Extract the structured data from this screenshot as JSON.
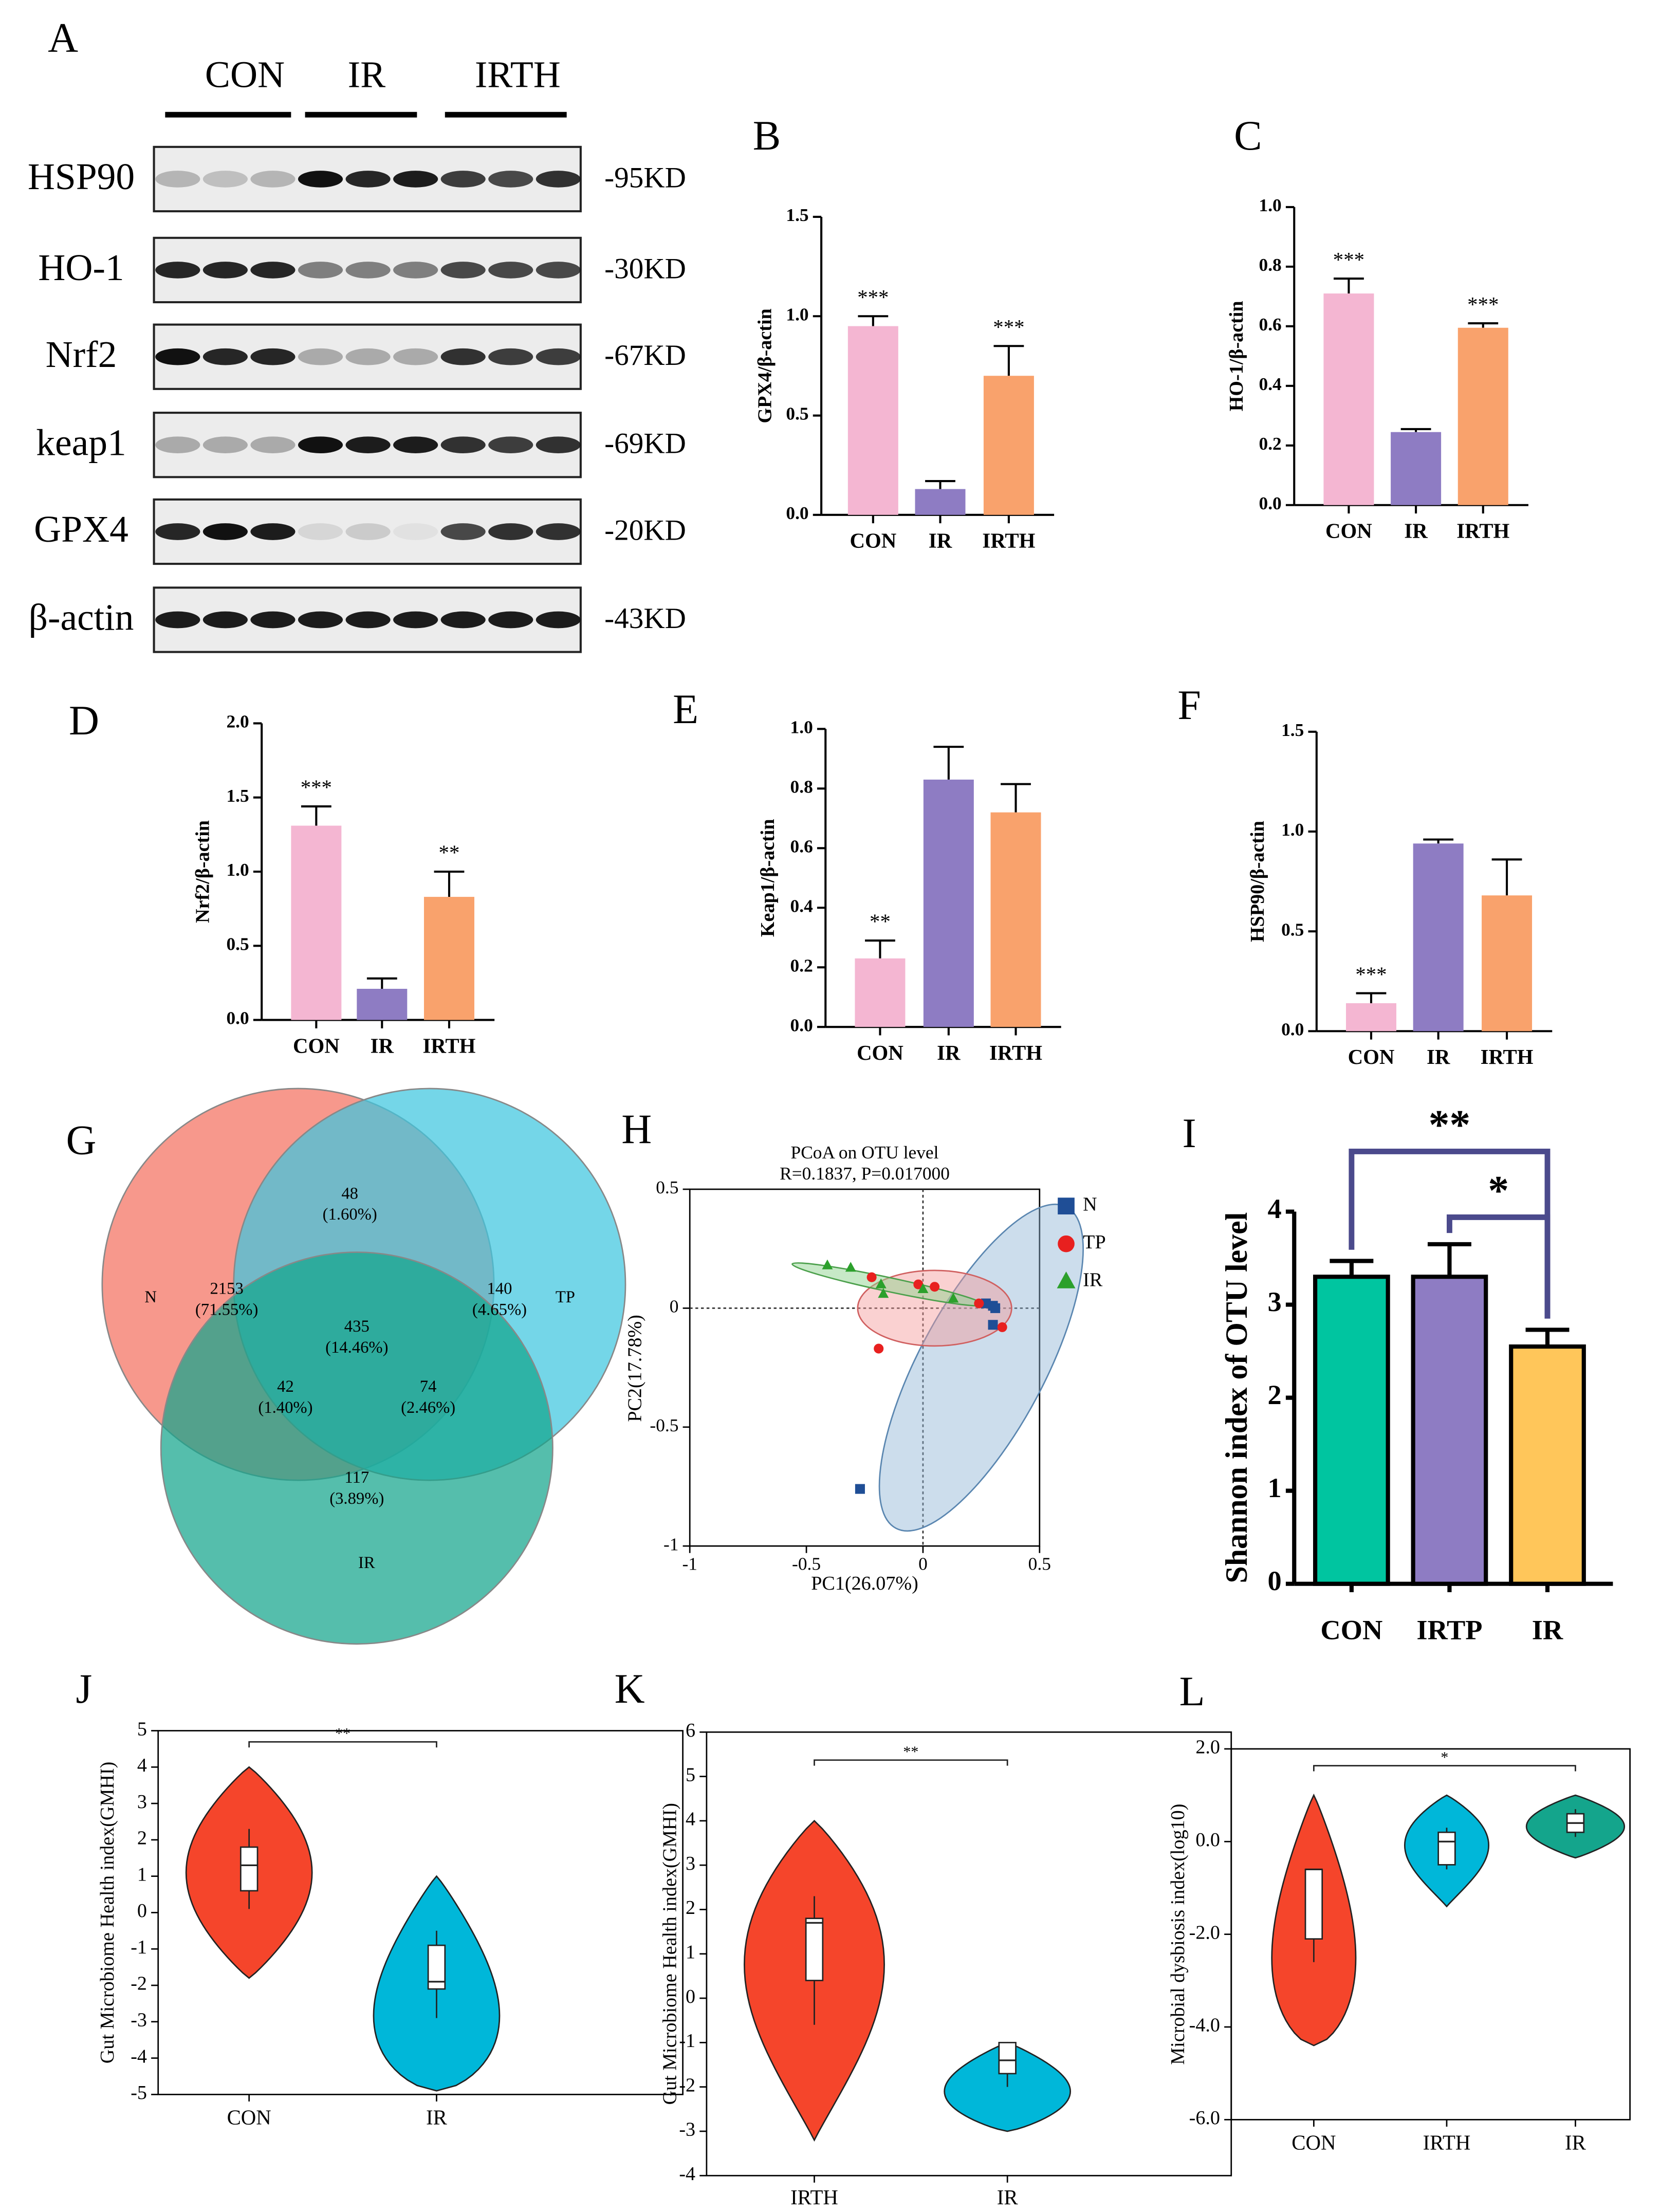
{
  "blot": {
    "panel": "A",
    "groups": [
      "CON",
      "IR",
      "IRTH"
    ],
    "proteins": [
      "HSP90",
      "HO-1",
      "Nrf2",
      "keap1",
      "GPX4",
      "β-actin"
    ],
    "sizes": [
      "-95KD",
      "-30KD",
      "-67KD",
      "-69KD",
      "-20KD",
      "-43KD"
    ]
  },
  "chart_data": [
    {
      "type": "bar",
      "panel": "B",
      "ylabel": "GPX4/β-actin",
      "categories": [
        "CON",
        "IR",
        "IRTH"
      ],
      "values": [
        0.95,
        0.13,
        0.7
      ],
      "errors": [
        0.05,
        0.04,
        0.15
      ],
      "annotations": [
        "***",
        null,
        "***"
      ],
      "colors": [
        "#f4b6d2",
        "#8e7cc3",
        "#f9a26c"
      ],
      "ylim": [
        0,
        1.5
      ],
      "yticks": [
        {
          "value": 0,
          "label": "0.0"
        },
        {
          "value": 0.5,
          "label": "0.5"
        },
        {
          "value": 1,
          "label": "1.0"
        },
        {
          "value": 1.5,
          "label": "1.5"
        }
      ]
    },
    {
      "type": "bar",
      "panel": "C",
      "ylabel": "HO-1/β-actin",
      "categories": [
        "CON",
        "IR",
        "IRTH"
      ],
      "values": [
        0.71,
        0.245,
        0.595
      ],
      "errors": [
        0.05,
        0.01,
        0.015
      ],
      "annotations": [
        "***",
        null,
        "***"
      ],
      "colors": [
        "#f4b6d2",
        "#8e7cc3",
        "#f9a26c"
      ],
      "ylim": [
        0,
        1
      ],
      "yticks": [
        {
          "value": 0,
          "label": "0.0"
        },
        {
          "value": 0.2,
          "label": "0.2"
        },
        {
          "value": 0.4,
          "label": "0.4"
        },
        {
          "value": 0.6,
          "label": "0.6"
        },
        {
          "value": 0.8,
          "label": "0.8"
        },
        {
          "value": 1,
          "label": "1.0"
        }
      ]
    },
    {
      "type": "bar",
      "panel": "D",
      "ylabel": "Nrf2/β-actin",
      "categories": [
        "CON",
        "IR",
        "IRTH"
      ],
      "values": [
        1.31,
        0.21,
        0.83
      ],
      "errors": [
        0.13,
        0.07,
        0.17
      ],
      "annotations": [
        "***",
        null,
        "**"
      ],
      "colors": [
        "#f4b6d2",
        "#8e7cc3",
        "#f9a26c"
      ],
      "ylim": [
        0,
        2
      ],
      "yticks": [
        {
          "value": 0,
          "label": "0.0"
        },
        {
          "value": 0.5,
          "label": "0.5"
        },
        {
          "value": 1,
          "label": "1.0"
        },
        {
          "value": 1.5,
          "label": "1.5"
        },
        {
          "value": 2,
          "label": "2.0"
        }
      ]
    },
    {
      "type": "bar",
      "panel": "E",
      "ylabel": "Keap1/β-actin",
      "categories": [
        "CON",
        "IR",
        "IRTH"
      ],
      "values": [
        0.23,
        0.83,
        0.72
      ],
      "errors": [
        0.06,
        0.11,
        0.095
      ],
      "annotations": [
        "**",
        null,
        null
      ],
      "colors": [
        "#f4b6d2",
        "#8e7cc3",
        "#f9a26c"
      ],
      "ylim": [
        0,
        1
      ],
      "yticks": [
        {
          "value": 0,
          "label": "0.0"
        },
        {
          "value": 0.2,
          "label": "0.2"
        },
        {
          "value": 0.4,
          "label": "0.4"
        },
        {
          "value": 0.6,
          "label": "0.6"
        },
        {
          "value": 0.8,
          "label": "0.8"
        },
        {
          "value": 1,
          "label": "1.0"
        }
      ]
    },
    {
      "type": "bar",
      "panel": "F",
      "ylabel": "HSP90/β-actin",
      "categories": [
        "CON",
        "IR",
        "IRTH"
      ],
      "values": [
        0.14,
        0.94,
        0.68
      ],
      "errors": [
        0.05,
        0.02,
        0.18
      ],
      "annotations": [
        "***",
        null,
        null
      ],
      "colors": [
        "#f4b6d2",
        "#8e7cc3",
        "#f9a26c"
      ],
      "ylim": [
        0,
        1.5
      ],
      "yticks": [
        {
          "value": 0,
          "label": "0.0"
        },
        {
          "value": 0.5,
          "label": "0.5"
        },
        {
          "value": 1,
          "label": "1.0"
        },
        {
          "value": 1.5,
          "label": "1.5"
        }
      ]
    },
    {
      "type": "venn",
      "panel": "G",
      "sets": [
        "N",
        "TP",
        "IR"
      ],
      "colors": [
        "#f4705f",
        "#3fc6df",
        "#14a58c"
      ],
      "counts": [
        2153,
        48,
        140,
        42,
        435,
        74,
        117
      ],
      "percents": [
        {
          "value": 71.55,
          "label": "(71.55%)"
        },
        {
          "value": 1.6,
          "label": "(1.60%)"
        },
        {
          "value": 4.65,
          "label": "(4.65%)"
        },
        {
          "value": 1.4,
          "label": "(1.40%)"
        },
        {
          "value": 14.46,
          "label": "(14.46%)"
        },
        {
          "value": 2.46,
          "label": "(2.46%)"
        },
        {
          "value": 3.89,
          "label": "(3.89%)"
        }
      ]
    },
    {
      "type": "scatter",
      "panel": "H",
      "title": "PCoA on OTU level",
      "subtitle": "R=0.1837, P=0.017000",
      "xlabel": "PC1(26.07%)",
      "ylabel": "PC2(17.78%)",
      "xlim": [
        -1,
        0.5
      ],
      "ylim": [
        -1,
        0.5
      ],
      "xticks": [
        -1,
        -0.5,
        0,
        0.5
      ],
      "yticks": [
        -1,
        -0.5,
        0,
        0.5
      ],
      "series": [
        {
          "name": "N",
          "color": "#1f4e96",
          "marker": "square",
          "x": [
            0.27,
            0.3,
            0.31,
            0.3,
            -0.27
          ],
          "y": [
            0.02,
            0.01,
            0.0,
            -0.07,
            -0.76
          ]
        },
        {
          "name": "TP",
          "color": "#e8201f",
          "marker": "circle",
          "x": [
            -0.22,
            -0.02,
            0.05,
            0.24,
            0.34,
            -0.19
          ],
          "y": [
            0.13,
            0.1,
            0.09,
            0.02,
            -0.08,
            -0.17
          ]
        },
        {
          "name": "IR",
          "color": "#2ca02c",
          "marker": "triangle",
          "x": [
            -0.41,
            -0.31,
            -0.18,
            -0.17,
            0.0,
            0.13
          ],
          "y": [
            0.18,
            0.17,
            0.1,
            0.06,
            0.08,
            0.04
          ]
        }
      ]
    },
    {
      "type": "bar",
      "panel": "I",
      "ylabel": "Shannon index of OTU level",
      "categories": [
        "CON",
        "IRTP",
        "IR"
      ],
      "values": [
        3.3,
        3.3,
        2.55
      ],
      "errors": [
        0.17,
        0.35,
        0.18
      ],
      "annotations": [
        null,
        null,
        null
      ],
      "colors": [
        "#00c5a0",
        "#8e7cc3",
        "#ffc65a"
      ],
      "ylim": [
        0,
        4
      ],
      "yticks": [
        0,
        1,
        2,
        3,
        4
      ],
      "brackets": [
        {
          "groups": [
            "CON",
            "IR"
          ],
          "label": "**"
        },
        {
          "groups": [
            "IRTP",
            "IR"
          ],
          "label": "*"
        }
      ]
    },
    {
      "type": "violin",
      "panel": "J",
      "ylabel": "Gut Microbiome Health index(GMHI)",
      "ylim": [
        -5,
        5
      ],
      "yticks": [
        -5,
        -4,
        -3,
        -2,
        -1,
        0,
        1,
        2,
        3,
        4,
        5
      ],
      "groups": [
        {
          "name": "CON",
          "color": "#f5452b",
          "range": [
            -1.8,
            4.0
          ],
          "whislo": 0.1,
          "q1": 0.6,
          "med": 1.3,
          "q3": 1.8,
          "whishi": 2.3
        },
        {
          "name": "IR",
          "color": "#00b7d9",
          "range": [
            -4.9,
            1.0
          ],
          "whislo": -2.9,
          "q1": -2.1,
          "med": -1.9,
          "q3": -0.9,
          "whishi": -0.5
        }
      ],
      "brackets": [
        {
          "groups": [
            "CON",
            "IR"
          ],
          "label": "**"
        }
      ]
    },
    {
      "type": "violin",
      "panel": "K",
      "ylabel": "Gut Microbiome Health index(GMHI)",
      "ylim": [
        -4,
        6
      ],
      "yticks": [
        -4,
        -3,
        -2,
        -1,
        0,
        1,
        2,
        3,
        4,
        5,
        6
      ],
      "groups": [
        {
          "name": "IRTH",
          "color": "#f5452b",
          "range": [
            -3.2,
            4.0
          ],
          "whislo": -0.6,
          "q1": 0.4,
          "med": 1.7,
          "q3": 1.8,
          "whishi": 2.3
        },
        {
          "name": "IR",
          "color": "#00b7d9",
          "range": [
            -3.0,
            -1.0
          ],
          "whislo": -2.0,
          "q1": -1.7,
          "med": -1.4,
          "q3": -1.0,
          "whishi": -1.0
        }
      ],
      "brackets": [
        {
          "groups": [
            "IRTH",
            "IR"
          ],
          "label": "**"
        }
      ]
    },
    {
      "type": "violin",
      "panel": "L",
      "ylabel": "Microbial dysbiosis index(log10)",
      "ylim": [
        -6,
        2
      ],
      "yticks": [
        {
          "value": -6,
          "label": "-6.0"
        },
        {
          "value": -4,
          "label": "-4.0"
        },
        {
          "value": -2,
          "label": "-2.0"
        },
        {
          "value": 0,
          "label": "0.0"
        },
        {
          "value": 2,
          "label": "2.0"
        }
      ],
      "groups": [
        {
          "name": "CON",
          "color": "#f5452b",
          "range": [
            -4.4,
            1.0
          ],
          "whislo": -2.6,
          "q1": -2.1,
          "med": -0.6,
          "q3": -0.6,
          "whishi": -0.6
        },
        {
          "name": "IRTH",
          "color": "#00b7d9",
          "range": [
            -1.4,
            1.0
          ],
          "whislo": -0.6,
          "q1": -0.5,
          "med": 0.0,
          "q3": 0.2,
          "whishi": 0.3
        },
        {
          "name": "IR",
          "color": "#14a58c",
          "range": [
            -0.35,
            1.0
          ],
          "whislo": 0.1,
          "q1": 0.2,
          "med": 0.4,
          "q3": 0.6,
          "whishi": 0.7
        }
      ],
      "brackets": [
        {
          "groups": [
            "CON",
            "IR"
          ],
          "label": "*"
        }
      ]
    }
  ]
}
